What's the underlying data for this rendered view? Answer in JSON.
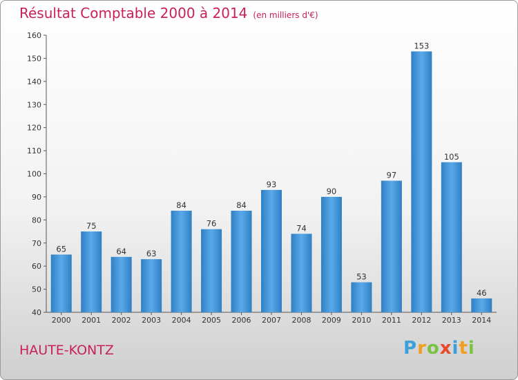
{
  "chart_data": {
    "type": "bar",
    "title": "Résultat Comptable 2000 à 2014",
    "subtitle": "(en milliers d'€)",
    "categories": [
      "2000",
      "2001",
      "2002",
      "2003",
      "2004",
      "2005",
      "2006",
      "2007",
      "2008",
      "2009",
      "2010",
      "2011",
      "2012",
      "2013",
      "2014"
    ],
    "values": [
      65,
      75,
      64,
      63,
      84,
      76,
      84,
      93,
      74,
      90,
      53,
      97,
      153,
      105,
      46
    ],
    "ylim": [
      40,
      160
    ],
    "yticks": [
      40,
      50,
      60,
      70,
      80,
      90,
      100,
      110,
      120,
      130,
      140,
      150,
      160
    ],
    "xlabel": "",
    "ylabel": "",
    "grid": false,
    "bar_color": "#4a9ee0"
  },
  "footer": {
    "location": "HAUTE-KONTZ",
    "logo_letters": [
      {
        "ch": "P",
        "color": "#3aa0d8"
      },
      {
        "ch": "r",
        "color": "#f0a020"
      },
      {
        "ch": "o",
        "color": "#7cc242"
      },
      {
        "ch": "x",
        "color": "#e8482c"
      },
      {
        "ch": "i",
        "color": "#3aa0d8"
      },
      {
        "ch": "t",
        "color": "#f0a020"
      },
      {
        "ch": "i",
        "color": "#7cc242"
      }
    ]
  }
}
